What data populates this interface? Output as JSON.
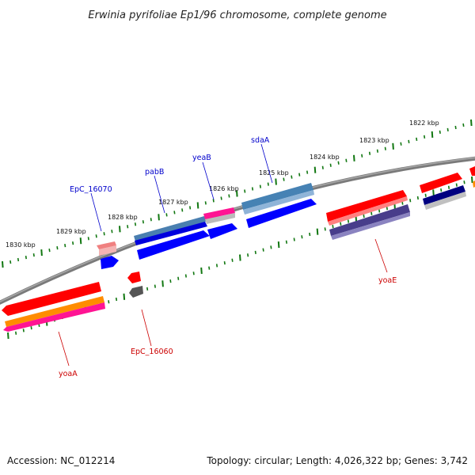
{
  "title": "Erwinia pyrifoliae Ep1/96 chromosome, complete genome",
  "accession": "Accession: NC_012214",
  "topology": "Topology: circular; Length: 4,026,322 bp; Genes: 3,742",
  "scale_labels": [
    "1822 kbp",
    "1823 kbp",
    "1824 kbp",
    "1825 kbp",
    "1826 kbp",
    "1827 kbp",
    "1828 kbp",
    "1829 kbp",
    "1830 kbp"
  ],
  "gene_labels": [
    "sdaA",
    "yeaB",
    "pabB",
    "EpC_16070",
    "yoaE",
    "EpC_16060",
    "yoaA"
  ],
  "colors": {
    "forward_label": "#0000cc",
    "reverse_label": "#cc0000",
    "tick": "#117711",
    "backbone": "#7a7a7a",
    "red": "#ff0000",
    "blue": "#0000ff",
    "steel": "#4682b4",
    "pink": "#ff1493",
    "orange": "#ff8c00",
    "navy": "#000080",
    "slate": "#483d8b",
    "salmon": "#f08080",
    "gray": "#808080",
    "silver": "#c0c0c0"
  }
}
